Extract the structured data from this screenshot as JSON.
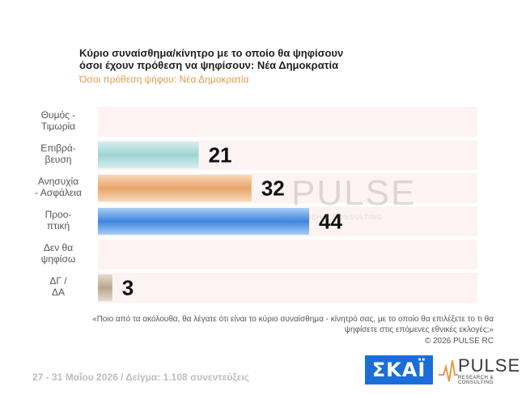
{
  "title_line1": "Κύριο συναίσθημα/κίνητρο με το οποίο θα ψηφίσουν",
  "title_line2": "όσοι έχουν πρόθεση να ψηφίσουν: Νέα Δημοκρατία",
  "subtitle": "Όσοι πρόθεση ψήφου: Νέα Δημοκρατία",
  "watermark": {
    "word": "PULSE",
    "sub": "RESEARCH & CONSULTING"
  },
  "footnote": "«Ποιο από τα ακόλουθα, θα λέγατε ότι είναι το κύριο συναίσθημα - κίνητρό σας, με το οποίο θα επιλέξετε το τι θα ψηφίσετε στις επόμενες εθνικές εκλογές;»",
  "copyright": "©  2026  PULSE RC",
  "sample_info": "27 - 31  Μαΐου 2026  /  Δείγμα:  1.108 συνεντεύξεις",
  "logos": {
    "skai": "ΣΚΑΪ",
    "pulse_word": "PULSE",
    "pulse_sub": "RESEARCH & CONSULTING"
  },
  "colors": {
    "subtitle": "#e39b4f",
    "row_band": "#fdf3f3",
    "title": "#1f1f1f"
  },
  "chart_data": {
    "type": "bar",
    "orientation": "horizontal",
    "categories": [
      [
        "Θυμός -",
        "Τιμωρία"
      ],
      [
        "Επιβρά-",
        "βευση"
      ],
      [
        "Ανησυχία",
        "- Ασφάλεια"
      ],
      [
        "Προο-",
        "πτική"
      ],
      [
        "Δεν θα",
        "ψηφίσω"
      ],
      [
        "ΔΓ /",
        "ΔΑ"
      ]
    ],
    "values": [
      0,
      21,
      32,
      44,
      0,
      3
    ],
    "labels": [
      "",
      "21",
      "32",
      "44",
      "",
      "3"
    ],
    "bar_colors": [
      [
        "#e8a3a3",
        "#f5d1d1"
      ],
      [
        "#9fd4d4",
        "#d6eeee"
      ],
      [
        "#e8a66b",
        "#f7d8b8"
      ],
      [
        "#3f86e0",
        "#a9cdf5"
      ],
      [
        "#cccccc",
        "#eeeeee"
      ],
      [
        "#b8a48e",
        "#e6dccf"
      ]
    ],
    "xlim": [
      0,
      100
    ],
    "grid": false,
    "legend": "none"
  }
}
